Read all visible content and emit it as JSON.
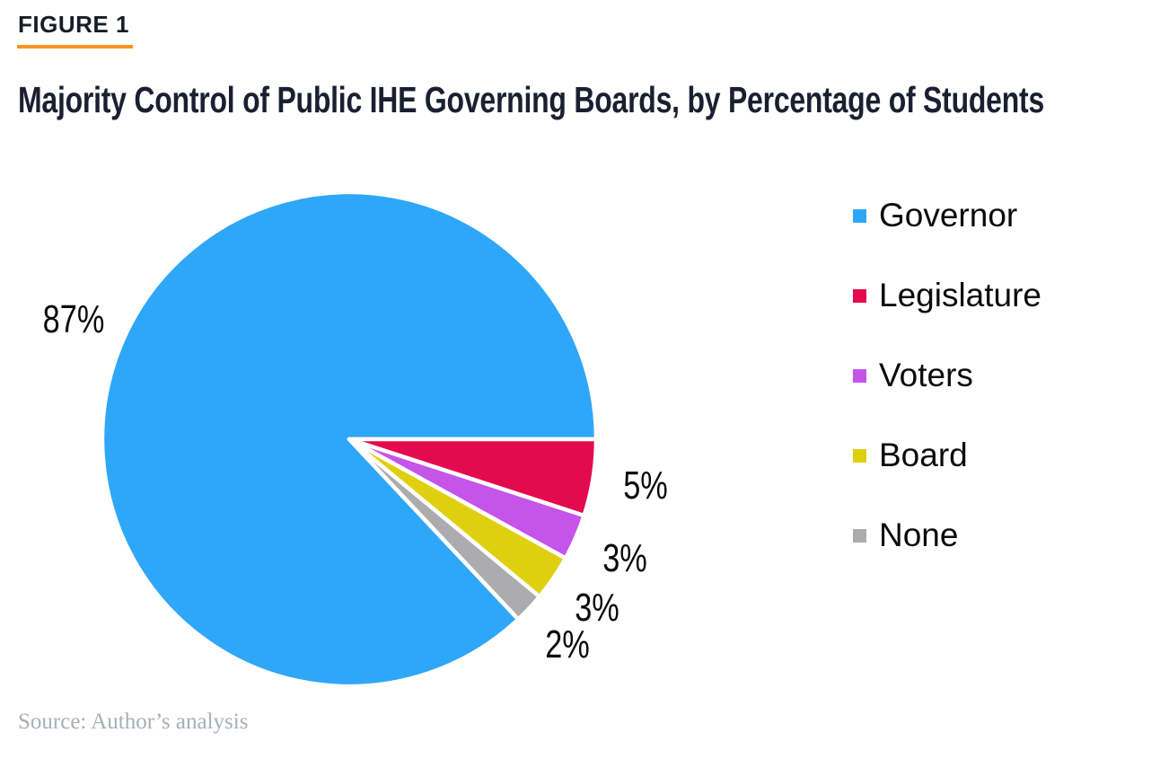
{
  "figure": {
    "label": "FIGURE 1",
    "title": "Majority Control of Public IHE Governing Boards, by Percentage of Students",
    "source": "Source: Author’s analysis",
    "accent_color": "#F7941E"
  },
  "chart_data": {
    "type": "pie",
    "title": "Majority Control of Public IHE Governing Boards, by Percentage of Students",
    "unit": "%",
    "legend_position": "right",
    "start_angle_deg_clockwise_from_top": 136.8,
    "slice_border_color": "#FFFFFF",
    "slices": [
      {
        "label": "Governor",
        "value": 87,
        "display": "87%",
        "color": "#2FA7F8"
      },
      {
        "label": "Legislature",
        "value": 5,
        "display": "5%",
        "color": "#E40A4E"
      },
      {
        "label": "Voters",
        "value": 3,
        "display": "3%",
        "color": "#C554E9"
      },
      {
        "label": "Board",
        "value": 3,
        "display": "3%",
        "color": "#DFD00F"
      },
      {
        "label": "None",
        "value": 2,
        "display": "2%",
        "color": "#ACACAE"
      }
    ]
  }
}
